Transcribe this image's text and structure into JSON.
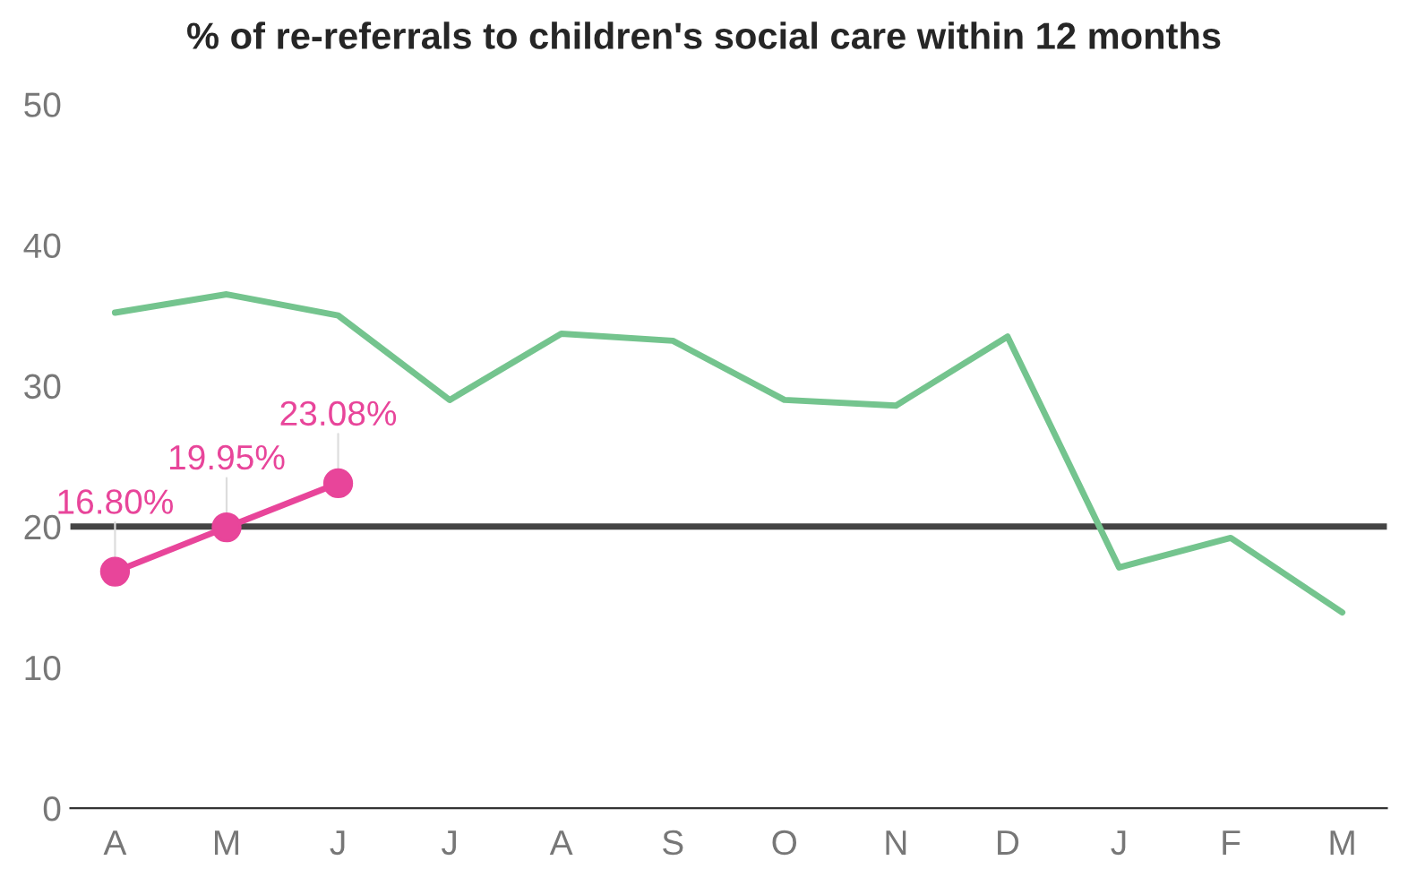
{
  "chart_data": {
    "type": "line",
    "title": "% of re-referrals to children's social care within 12 months",
    "categories": [
      "A",
      "M",
      "J",
      "J",
      "A",
      "S",
      "O",
      "N",
      "D",
      "J",
      "F",
      "M"
    ],
    "series": [
      {
        "color": "#74c48e",
        "values": [
          35.2,
          36.5,
          35.0,
          29.0,
          33.7,
          33.2,
          29.0,
          28.6,
          33.5,
          17.1,
          19.2,
          13.9
        ],
        "marker": "none"
      },
      {
        "color": "#e8459a",
        "values": [
          16.8,
          19.95,
          23.08,
          null,
          null,
          null,
          null,
          null,
          null,
          null,
          null,
          null
        ],
        "marker": "circle",
        "value_labels": [
          "16.80%",
          "19.95%",
          "23.08%",
          null,
          null,
          null,
          null,
          null,
          null,
          null,
          null,
          null
        ]
      }
    ],
    "ylim": [
      0,
      50
    ],
    "yticks": [
      0,
      10,
      20,
      30,
      40,
      50
    ],
    "grid": false,
    "legend": false,
    "ref_lines": [
      {
        "axis": "y",
        "value": 20,
        "color": "#444444"
      }
    ]
  }
}
